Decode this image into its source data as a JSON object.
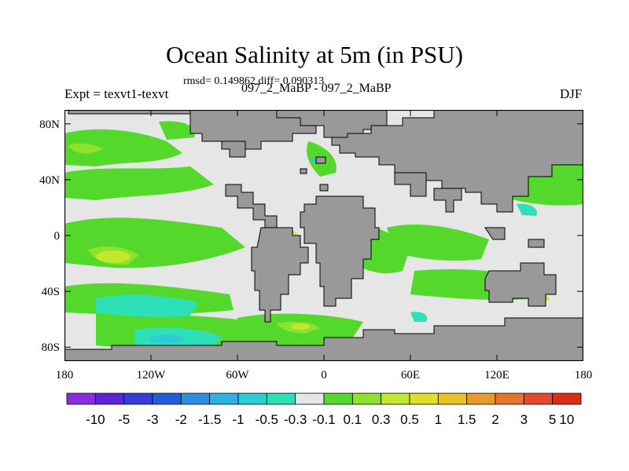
{
  "title": "Ocean Salinity at 5m (in PSU)",
  "stats": "rmsd= 0.149862 diff= 0.090313",
  "left_string": "Expt = texvt1-texvt",
  "center_string": "097_2_MaBP - 097_2_MaBP",
  "right_string": "DJF",
  "axes": {
    "lon_ticks": [
      {
        "value": -180,
        "label": "180"
      },
      {
        "value": -120,
        "label": "120W"
      },
      {
        "value": -60,
        "label": "60W"
      },
      {
        "value": 0,
        "label": "0"
      },
      {
        "value": 60,
        "label": "60E"
      },
      {
        "value": 120,
        "label": "120E"
      },
      {
        "value": 180,
        "label": "180"
      }
    ],
    "lat_ticks": [
      {
        "value": 80,
        "label": "80N"
      },
      {
        "value": 40,
        "label": "40N"
      },
      {
        "value": 0,
        "label": "0"
      },
      {
        "value": -40,
        "label": "40S"
      },
      {
        "value": -80,
        "label": "80S"
      }
    ],
    "lon_range": [
      -180,
      180
    ],
    "lat_range": [
      -90,
      90
    ]
  },
  "colors": {
    "land": "#999999",
    "zero_band": "#e6e6e6"
  },
  "colorbar": {
    "colors": [
      "#8c2be0",
      "#5a26d6",
      "#3a3ad6",
      "#1f60d8",
      "#2e8fe0",
      "#2cb0e6",
      "#2ccdd5",
      "#2ee0b7",
      "#e6e6e6",
      "#55d82c",
      "#8ee22e",
      "#c2e82e",
      "#dce02a",
      "#e8c22a",
      "#e89a2a",
      "#e5752a",
      "#e24c2a",
      "#dd2c1a"
    ],
    "labels": [
      "-10",
      "-5",
      "-3",
      "-2",
      "-1.5",
      "-1",
      "-0.5",
      "-0.3",
      "-0.1",
      "0.1",
      "0.3",
      "0.5",
      "1",
      "1.5",
      "2",
      "3",
      "5",
      "10"
    ]
  }
}
